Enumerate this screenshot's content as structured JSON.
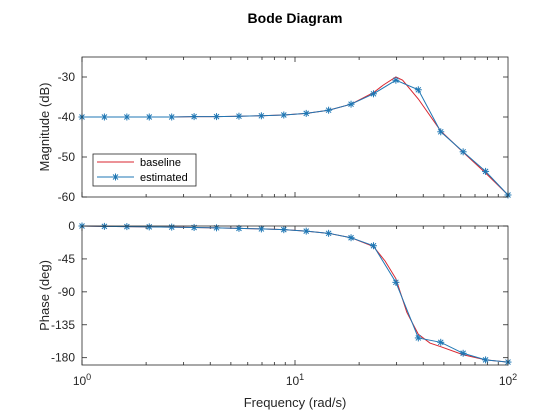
{
  "chart_data": {
    "type": "line",
    "title": "Bode Diagram",
    "xlabel": "Frequency (rad/s)",
    "xscale": "log",
    "xlim": [
      1,
      100
    ],
    "x_ticks": [
      {
        "base": "10",
        "exp": "0"
      },
      {
        "base": "10",
        "exp": "1"
      },
      {
        "base": "10",
        "exp": "2"
      }
    ],
    "colors": {
      "baseline": "#d9262f",
      "estimated": "#1f77b4",
      "axis": "#262626",
      "background": "#ffffff"
    },
    "legend": {
      "placement": "lower-left",
      "entries": [
        "baseline",
        "estimated"
      ]
    },
    "marker": "asterisk",
    "panels": [
      {
        "id": "magnitude",
        "ylabel": "Magnitude (dB)",
        "ylim": [
          -60,
          -25
        ],
        "yticks": [
          -60,
          -50,
          -40,
          -30
        ],
        "ytick_labels": [
          "-60",
          "-50",
          "-40",
          "-30"
        ],
        "series": [
          {
            "name": "baseline",
            "x": [
              1,
              1.274,
              1.624,
              2.069,
              2.637,
              3.36,
              4.281,
              5.456,
              6.952,
              8.859,
              11.29,
              14.38,
              18.33,
              23.36,
              26.0,
              29.76,
              32.0,
              37.93,
              48.33,
              61.58,
              78.48,
              100
            ],
            "y": [
              -40,
              -40,
              -40,
              -40,
              -40,
              -39.9,
              -39.9,
              -39.8,
              -39.7,
              -39.5,
              -39.1,
              -38.3,
              -36.8,
              -33.9,
              -32.0,
              -30.0,
              -30.8,
              -35.5,
              -43.5,
              -48.8,
              -54.0,
              -59.5
            ]
          },
          {
            "name": "estimated",
            "x": [
              1,
              1.274,
              1.624,
              2.069,
              2.637,
              3.36,
              4.281,
              5.456,
              6.952,
              8.859,
              11.29,
              14.38,
              18.33,
              23.36,
              29.76,
              37.93,
              48.33,
              61.58,
              78.48,
              100
            ],
            "y": [
              -40,
              -40,
              -40,
              -40,
              -40,
              -39.9,
              -39.9,
              -39.8,
              -39.7,
              -39.5,
              -39.1,
              -38.3,
              -36.8,
              -34.2,
              -30.8,
              -33.2,
              -43.7,
              -48.7,
              -53.6,
              -59.5
            ]
          }
        ]
      },
      {
        "id": "phase",
        "ylabel": "Phase (deg)",
        "ylim": [
          -190,
          0
        ],
        "yticks": [
          -180,
          -135,
          -90,
          -45,
          0
        ],
        "ytick_labels": [
          "-180",
          "-135",
          "-90",
          "-45",
          "0"
        ],
        "series": [
          {
            "name": "baseline",
            "x": [
              1,
              1.274,
              1.624,
              2.069,
              2.637,
              3.36,
              4.281,
              5.456,
              6.952,
              8.859,
              11.29,
              14.38,
              18.33,
              23.36,
              26.5,
              29.76,
              33.5,
              37.93,
              43.0,
              48.33,
              61.58,
              78.48,
              100
            ],
            "y": [
              0,
              -0.5,
              -0.8,
              -1.2,
              -1.5,
              -2,
              -2.5,
              -3.2,
              -4,
              -5,
              -7,
              -10,
              -16,
              -28,
              -48,
              -72,
              -118,
              -148,
              -160,
              -165,
              -176,
              -183,
              -186
            ]
          },
          {
            "name": "estimated",
            "x": [
              1,
              1.274,
              1.624,
              2.069,
              2.637,
              3.36,
              4.281,
              5.456,
              6.952,
              8.859,
              11.29,
              14.38,
              18.33,
              23.36,
              29.76,
              37.93,
              48.33,
              61.58,
              78.48,
              100
            ],
            "y": [
              0,
              -0.5,
              -0.8,
              -1.2,
              -1.5,
              -2,
              -2.5,
              -3.2,
              -4,
              -5,
              -7,
              -10,
              -16,
              -27,
              -77,
              -153,
              -159,
              -174,
              -183,
              -186
            ]
          }
        ]
      }
    ]
  }
}
